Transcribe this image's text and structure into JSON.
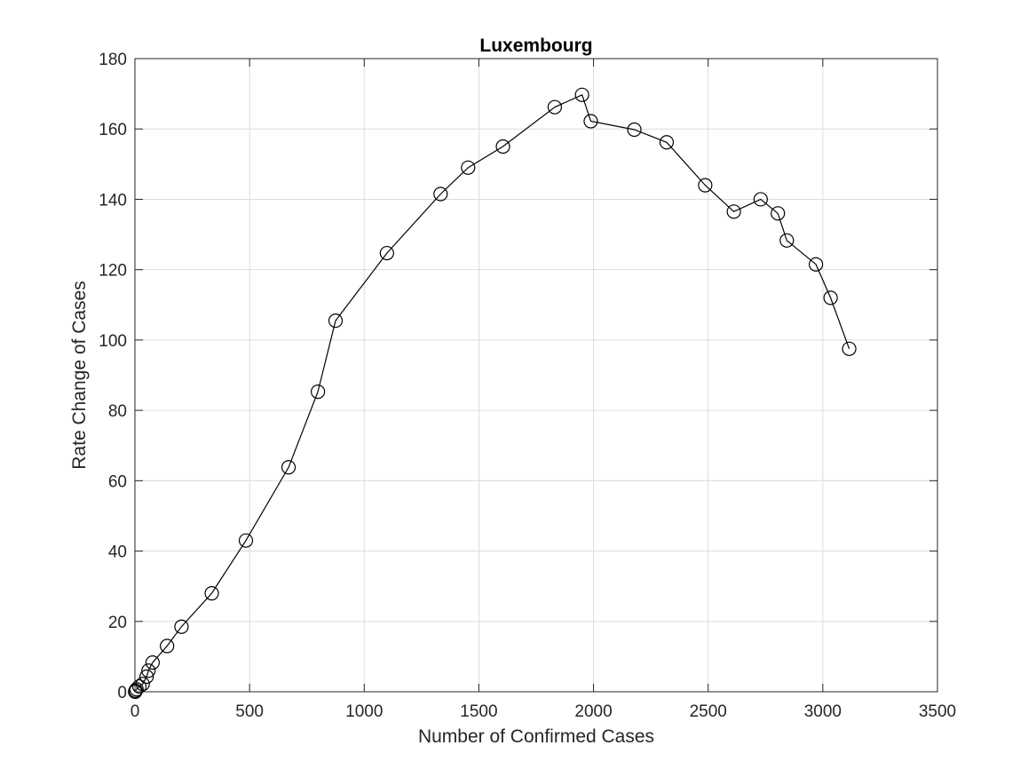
{
  "chart_data": {
    "type": "line",
    "title": "Luxembourg",
    "xlabel": "Number of Confirmed Cases",
    "ylabel": "Rate Change of Cases",
    "xlim": [
      0,
      3500
    ],
    "ylim": [
      0,
      180
    ],
    "xticks": [
      0,
      500,
      1000,
      1500,
      2000,
      2500,
      3000,
      3500
    ],
    "yticks": [
      0,
      20,
      40,
      60,
      80,
      100,
      120,
      140,
      160,
      180
    ],
    "xtick_labels": [
      "0",
      "500",
      "1000",
      "1500",
      "2000",
      "2500",
      "3000",
      "3500"
    ],
    "ytick_labels": [
      "0",
      "20",
      "40",
      "60",
      "80",
      "100",
      "120",
      "140",
      "160",
      "180"
    ],
    "grid": true,
    "marker": "open-circle",
    "line_color": "#000000",
    "series": [
      {
        "x": [
          1,
          3,
          7,
          19,
          34,
          51,
          59,
          77,
          140,
          203,
          335,
          484,
          670,
          798,
          875,
          1099,
          1333,
          1453,
          1605,
          1831,
          1950,
          1988,
          2178,
          2319,
          2487,
          2612,
          2729,
          2804,
          2843,
          2970,
          3034,
          3115
        ],
        "y": [
          0,
          0.3,
          0.7,
          1.5,
          2.2,
          4.3,
          6.0,
          8.3,
          13.0,
          18.5,
          28.0,
          43.0,
          63.8,
          85.3,
          105.5,
          124.7,
          141.5,
          149.0,
          155.0,
          166.2,
          169.7,
          162.2,
          159.8,
          156.2,
          144.0,
          136.5,
          140.0,
          136.0,
          128.3,
          121.5,
          112.0,
          97.5
        ]
      }
    ]
  }
}
